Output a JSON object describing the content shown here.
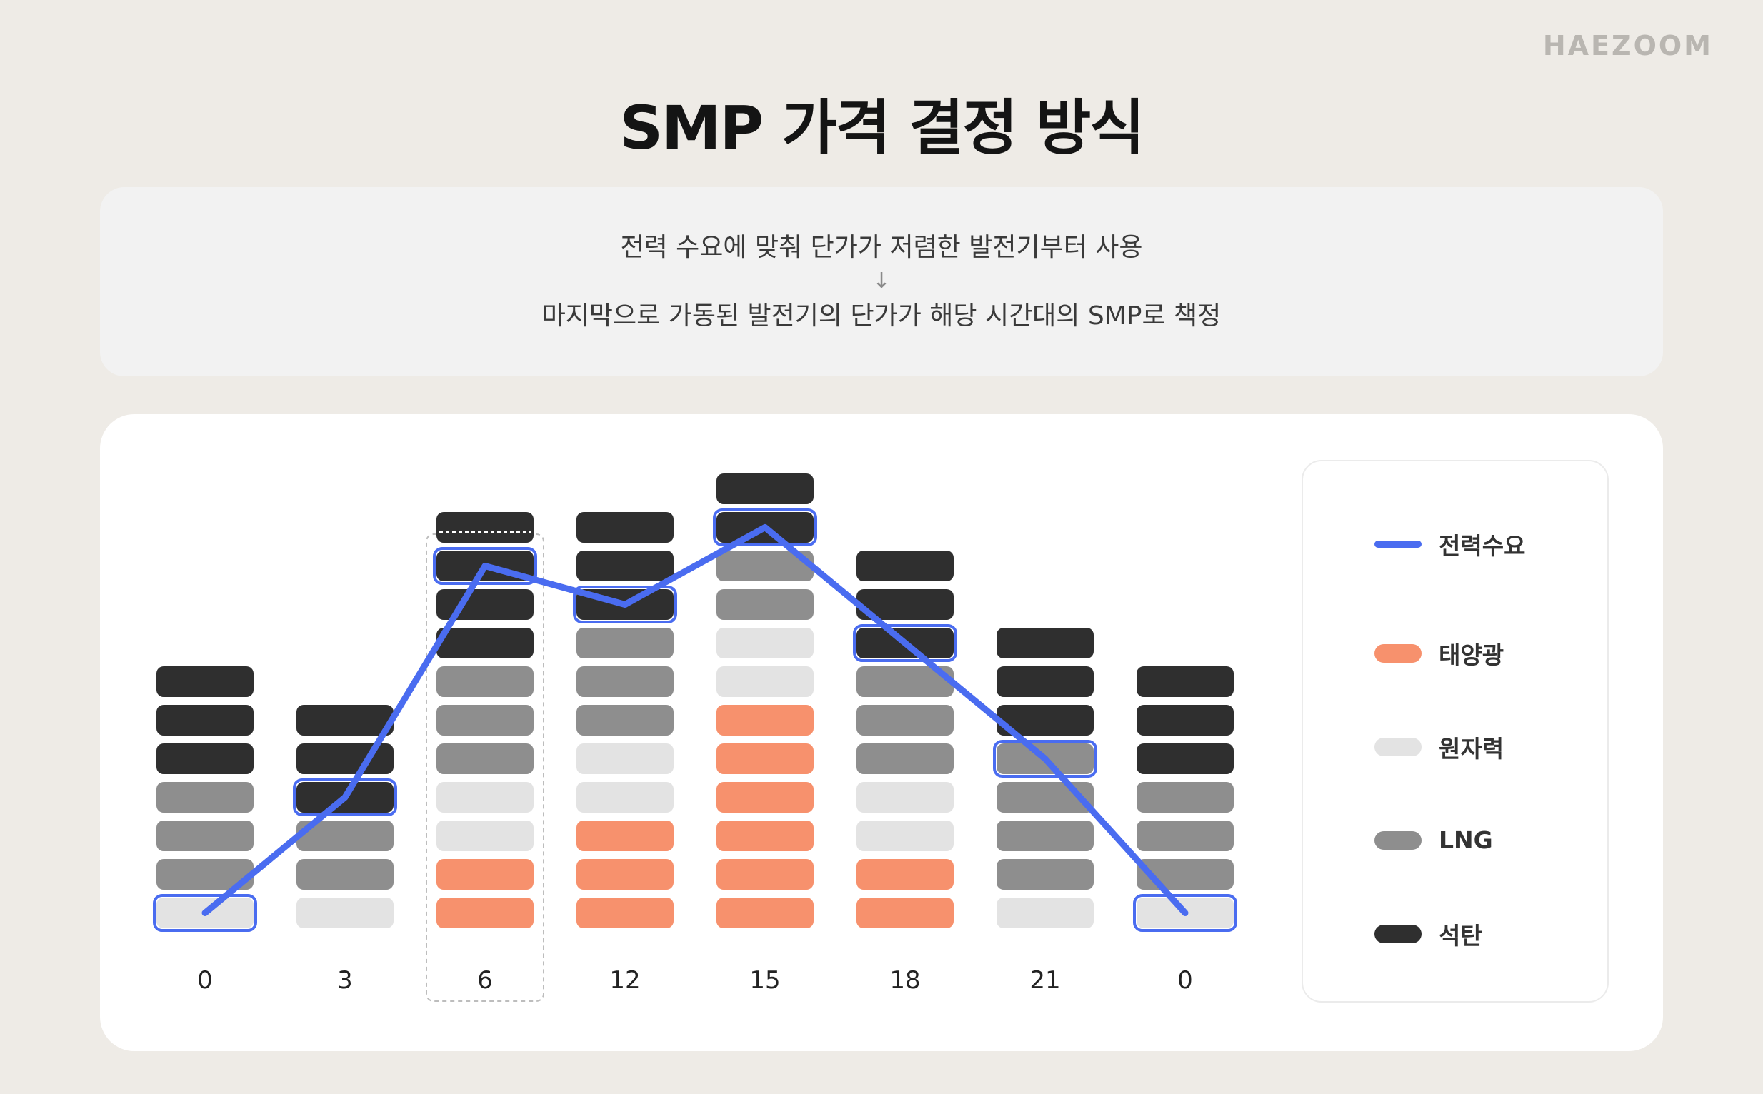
{
  "brand": "HAEZOOM",
  "title": "SMP 가격 결정 방식",
  "description": {
    "line1": "전력 수요에 맞춰 단가가 저렴한 발전기부터 사용",
    "arrow": "↓",
    "line2": "마지막으로 가동된 발전기의 단가가 해당 시간대의 SMP로 책정"
  },
  "colors": {
    "demand": "#4a6cf0",
    "solar": "#f7916d",
    "nuclear": "#e3e3e3",
    "lng": "#8e8e8e",
    "coal": "#2f2f2f",
    "highlight_border": "#4a6cf0"
  },
  "chart_data": {
    "type": "bar",
    "categories": [
      "0",
      "3",
      "6",
      "12",
      "15",
      "18",
      "21",
      "0"
    ],
    "stack_order": [
      "태양광",
      "원자력",
      "LNG",
      "석탄"
    ],
    "series": [
      {
        "name": "태양광",
        "key": "solar",
        "values": [
          0,
          0,
          2,
          3,
          6,
          2,
          0,
          0
        ]
      },
      {
        "name": "원자력",
        "key": "nuclear",
        "values": [
          1,
          1,
          2,
          2,
          2,
          2,
          1,
          1
        ]
      },
      {
        "name": "LNG",
        "key": "lng",
        "values": [
          3,
          2,
          3,
          3,
          2,
          3,
          4,
          3
        ]
      },
      {
        "name": "석탄",
        "key": "coal",
        "values": [
          3,
          3,
          4,
          3,
          2,
          3,
          3,
          3
        ]
      }
    ],
    "demand": {
      "name": "전력수요",
      "values": [
        1,
        4,
        10,
        9,
        11,
        8,
        5,
        1
      ]
    },
    "highlighted_category_index": 2,
    "legend_position": "right"
  },
  "legend": [
    {
      "label": "전력수요",
      "key": "demand",
      "kind": "line"
    },
    {
      "label": "태양광",
      "key": "solar",
      "kind": "block"
    },
    {
      "label": "원자력",
      "key": "nuclear",
      "kind": "block"
    },
    {
      "label": "LNG",
      "key": "lng",
      "kind": "block"
    },
    {
      "label": "석탄",
      "key": "coal",
      "kind": "block"
    }
  ]
}
